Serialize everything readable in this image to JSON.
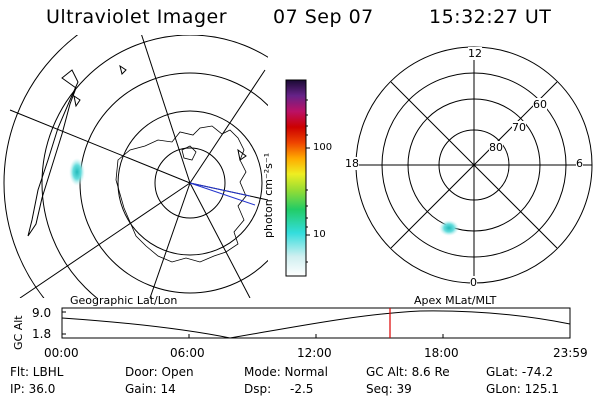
{
  "header": {
    "instrument": "Ultraviolet Imager",
    "date": "07 Sep 07",
    "time": "15:32:27 UT"
  },
  "colorbar": {
    "unit_label": "photon cm⁻²s⁻¹",
    "ticks": [
      "100",
      "10"
    ]
  },
  "polar_plot": {
    "mlt_labels": [
      "12",
      "18",
      "6",
      "0"
    ],
    "mlat_labels": [
      "60",
      "70",
      "80"
    ]
  },
  "orbit_panel": {
    "left_title": "Geographic Lat/Lon",
    "right_title": "Apex MLat/MLT",
    "y_axis_label": "GC Alt",
    "y_ticks": [
      "9.0",
      "1.8"
    ],
    "x_ticks": [
      "00:00",
      "06:00",
      "12:00",
      "18:00",
      "23:59"
    ],
    "current_time_marker": "15:32:27"
  },
  "footer": {
    "filter": "Flt: LBHL",
    "ip": "IP: 36.0",
    "door": "Door: Open",
    "gain": "Gain: 14",
    "mode": "Mode: Normal",
    "dsp_label": "Dsp:",
    "dsp_value": "-2.5",
    "gc_alt": "GC Alt: 8.6 Re",
    "seq": "Seq: 39",
    "glat": "GLat: -74.2",
    "glon": "GLon: 125.1"
  },
  "colors": {
    "background": "#ffffff",
    "lines": "#000000",
    "marker": "#dd0000",
    "aurora": "#44dddd"
  }
}
